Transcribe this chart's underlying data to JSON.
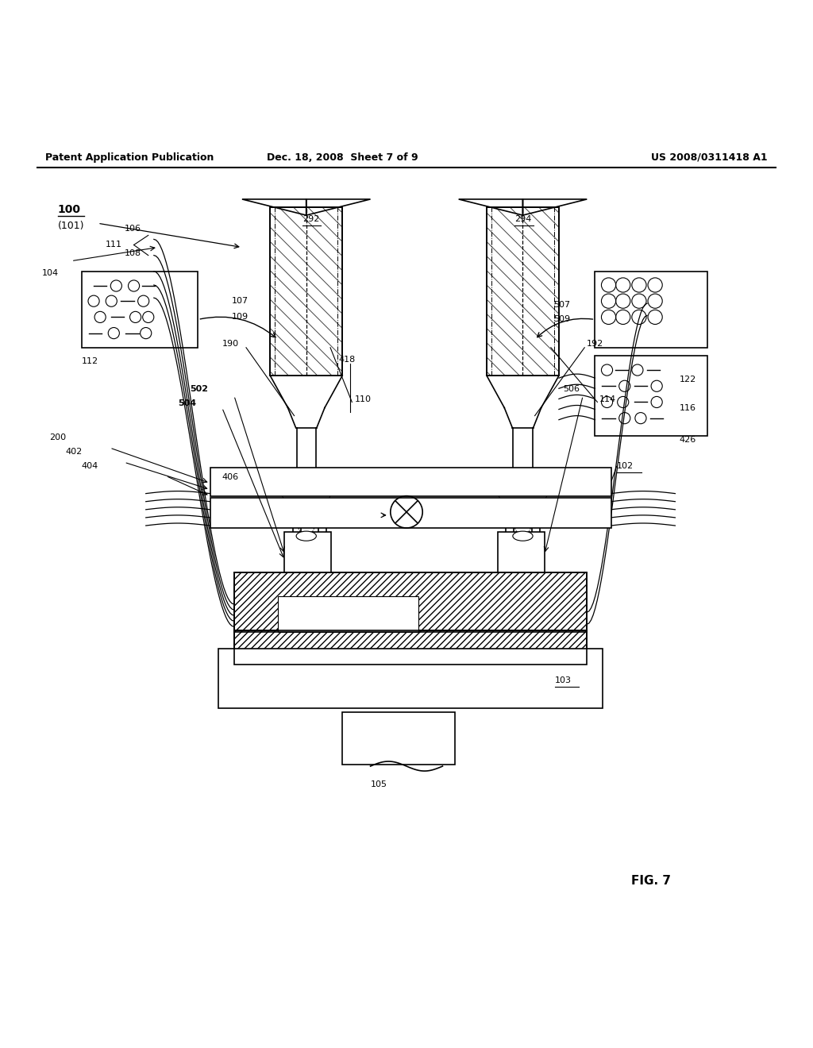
{
  "background_color": "#ffffff",
  "header_left": "Patent Application Publication",
  "header_center": "Dec. 18, 2008  Sheet 7 of 9",
  "header_right": "US 2008/0311418 A1",
  "figure_label": "FIG. 7"
}
